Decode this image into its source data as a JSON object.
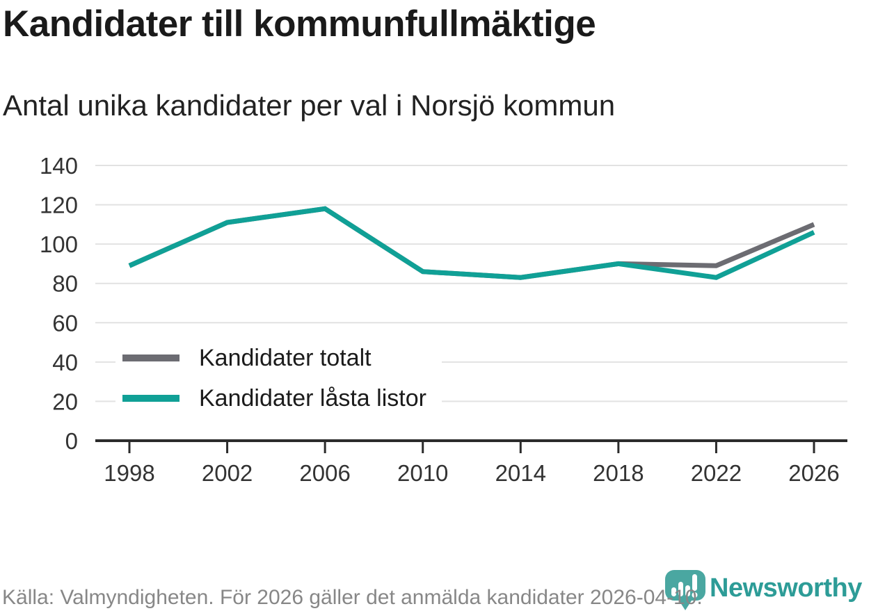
{
  "header": {
    "title": "Kandidater till kommunfullmäktige",
    "subtitle": "Antal unika kandidater per val i Norsjö kommun"
  },
  "chart_data": {
    "type": "line",
    "title": "Kandidater till kommunfullmäktige",
    "subtitle": "Antal unika kandidater per val i Norsjö kommun",
    "x": [
      1998,
      2002,
      2006,
      2010,
      2014,
      2018,
      2022,
      2026
    ],
    "series": [
      {
        "name": "Kandidater totalt",
        "color": "#6C6C72",
        "values": [
          89,
          111,
          118,
          86,
          83,
          90,
          89,
          110
        ]
      },
      {
        "name": "Kandidater låsta listor",
        "color": "#10A096",
        "values": [
          89,
          111,
          118,
          86,
          83,
          90,
          83,
          106
        ]
      }
    ],
    "xlabel": "",
    "ylabel": "",
    "ylim": [
      0,
      140
    ],
    "ytick_step": 20,
    "grid": true,
    "legend_position": "inside-left-middle"
  },
  "footer": {
    "source_text": "Källa: Valmyndigheten. För 2026 gäller det anmälda kandidater 2026-04-10.",
    "brand": "Newsworthy",
    "brand_color": "#2D9C97",
    "logo_color": "#4AA7A1"
  }
}
